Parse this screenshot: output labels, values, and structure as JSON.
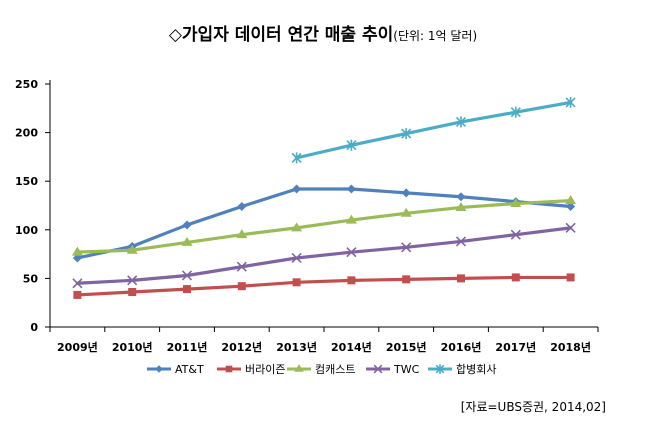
{
  "chart_data": {
    "type": "line",
    "title": "◇가입자 데이터 연간 매출 추이",
    "subtitle": "(단위: 1억 달러)",
    "categories": [
      "2009년",
      "2010년",
      "2011년",
      "2012년",
      "2013년",
      "2014년",
      "2015년",
      "2016년",
      "2017년",
      "2018년"
    ],
    "ylim": [
      0,
      250
    ],
    "yticks": [
      0,
      50,
      100,
      150,
      200,
      250
    ],
    "grid": false,
    "legend_position": "bottom",
    "series": [
      {
        "name": "AT&T",
        "color": "#4f81bd",
        "marker": "diamond",
        "values": [
          71,
          83,
          105,
          124,
          142,
          142,
          138,
          134,
          129,
          124
        ]
      },
      {
        "name": "버라이즌",
        "color": "#c0504d",
        "marker": "square",
        "values": [
          33,
          36,
          39,
          42,
          46,
          48,
          49,
          50,
          51,
          51
        ]
      },
      {
        "name": "컴캐스트",
        "color": "#9bbb59",
        "marker": "triangle",
        "values": [
          77,
          79,
          87,
          95,
          102,
          110,
          117,
          123,
          127,
          130
        ]
      },
      {
        "name": "TWC",
        "color": "#8064a2",
        "marker": "x",
        "values": [
          45,
          48,
          53,
          62,
          71,
          77,
          82,
          88,
          95,
          102
        ]
      },
      {
        "name": "합병회사",
        "color": "#4bacc6",
        "marker": "star",
        "values": [
          null,
          null,
          null,
          null,
          174,
          187,
          199,
          211,
          221,
          231
        ]
      }
    ],
    "source": "[자료=UBS증권, 2014,02]"
  }
}
